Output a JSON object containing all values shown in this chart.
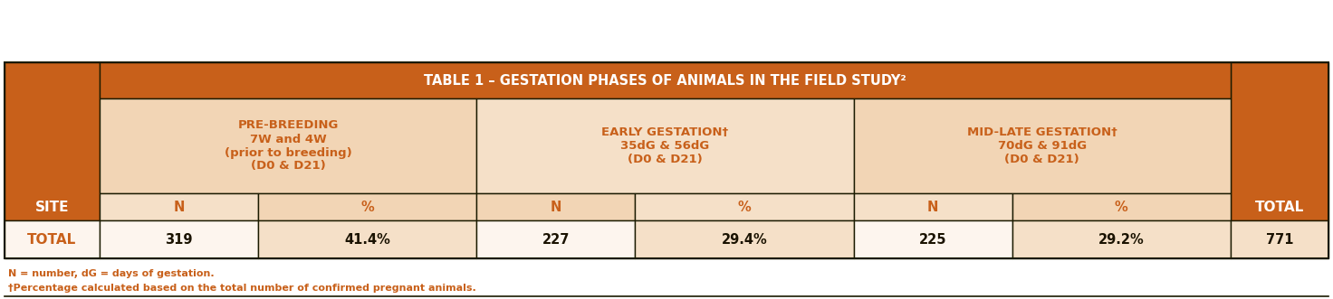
{
  "title": "TABLE 1 – GESTATION PHASES OF ANIMALS IN THE FIELD STUDY²",
  "title_bg": "#C8601A",
  "title_color": "#FFFFFF",
  "header_bg": "#F2D5B5",
  "header_bg2": "#F5E0C8",
  "site_bg": "#C8601A",
  "site_color": "#FFFFFF",
  "total_row_bg": "#FDF5EE",
  "border_color": "#1A1A00",
  "col_headers": [
    {
      "label": "PRE-BREEDING\n7W and 4W\n(prior to breeding)\n(D0 & D21)"
    },
    {
      "label": "EARLY GESTATION†\n35dG & 56dG\n(D0 & D21)"
    },
    {
      "label": "MID-LATE GESTATION†\n70dG & 91dG\n(D0 & D21)"
    }
  ],
  "sub_headers": [
    "N",
    "%",
    "N",
    "%",
    "N",
    "%"
  ],
  "data_values": [
    "319",
    "41.4%",
    "227",
    "29.4%",
    "225",
    "29.2%",
    "771"
  ],
  "site_label": "SITE",
  "total_label": "TOTAL",
  "data_row_label": "TOTAL",
  "footnote1": "N = number, dG = days of gestation.",
  "footnote2": "†Percentage calculated based on the total number of confirmed pregnant animals.",
  "footnote_color": "#C8601A",
  "text_dark": "#C8601A",
  "text_black": "#1A1200"
}
